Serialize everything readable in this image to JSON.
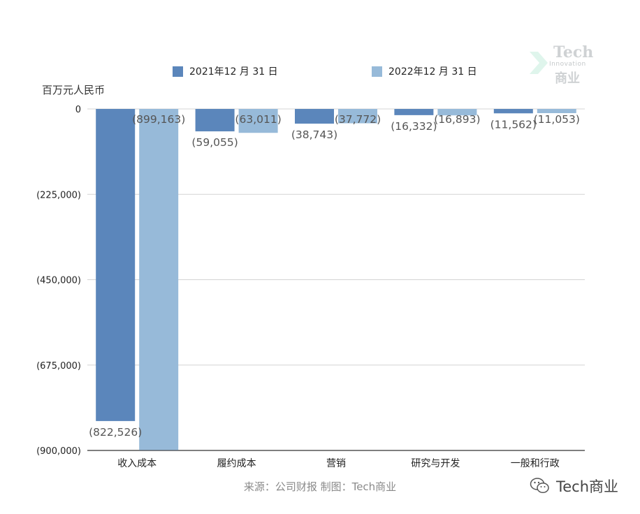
{
  "watermark": {
    "line1": "Tech",
    "line2": "Innovation",
    "line3": "商业"
  },
  "footer": {
    "source": "来源：公司财报 制图：Tech商业",
    "brand": "Tech商业"
  },
  "colors": {
    "series1": "#5b86bb",
    "series2": "#97bad9",
    "grid": "#d4d4d4",
    "axis": "#333333"
  },
  "chart_data": {
    "type": "bar",
    "unit_label": "百万元人民币",
    "categories": [
      "收入成本",
      "履约成本",
      "营销",
      "研究与开发",
      "一般和行政"
    ],
    "series": [
      {
        "name": "2021年12 月 31 日",
        "values": [
          -822526,
          -59055,
          -38743,
          -16332,
          -11562
        ],
        "labels": [
          "(822,526)",
          "(59,055)",
          "(38,743)",
          "(16,332)",
          "(11,562)"
        ]
      },
      {
        "name": "2022年12 月 31 日",
        "values": [
          -899163,
          -63011,
          -37772,
          -16893,
          -11053
        ],
        "labels": [
          "(899,163)",
          "(63,011)",
          "(37,772)",
          "(16,893)",
          "(11,053)"
        ]
      }
    ],
    "y_ticks": [
      0,
      -225000,
      -450000,
      -675000,
      -900000
    ],
    "y_tick_labels": [
      "0",
      "(225,000)",
      "(450,000)",
      "(675,000)",
      "(900,000)"
    ],
    "ylim": [
      -900000,
      0
    ],
    "grid": true,
    "legend_position": "top"
  }
}
